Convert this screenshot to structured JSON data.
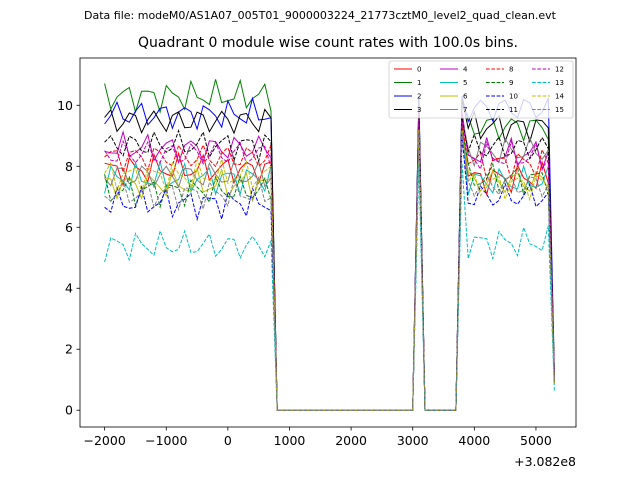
{
  "figure": {
    "suptitle": "Data file: modeM0/AS1A07_005T01_9000003224_21773cztM0_level2_quad_clean.evt",
    "title": "Quadrant 0 module wise count rates with 100.0s bins.",
    "offset_label": "+3.082e8"
  },
  "chart_data": {
    "type": "line",
    "title": "Quadrant 0 module wise count rates with 100.0s bins.",
    "xlabel": "",
    "ylabel": "",
    "x_offset": 308200000,
    "xlim": [
      -2400,
      5650
    ],
    "ylim": [
      -0.55,
      11.55
    ],
    "xticks": [
      -2000,
      -1000,
      0,
      1000,
      2000,
      3000,
      4000,
      5000
    ],
    "xtick_labels": [
      "−2000",
      "−1000",
      "0",
      "1000",
      "2000",
      "3000",
      "4000",
      "5000"
    ],
    "yticks": [
      0,
      2,
      4,
      6,
      8,
      10
    ],
    "ytick_labels": [
      "0",
      "2",
      "4",
      "6",
      "8",
      "10"
    ],
    "grid": false,
    "legend": "upper-right",
    "profile": {
      "x": [
        -2000,
        -1900,
        -1800,
        -1700,
        -1600,
        -1500,
        -1400,
        -1300,
        -1200,
        -1100,
        -1000,
        -900,
        -800,
        -700,
        -600,
        -500,
        -400,
        -300,
        -200,
        -100,
        0,
        100,
        200,
        300,
        400,
        500,
        600,
        700,
        800,
        900,
        1000,
        1100,
        1200,
        1300,
        1400,
        1500,
        1600,
        1700,
        1800,
        1900,
        2000,
        2100,
        2200,
        2300,
        2400,
        2500,
        2600,
        2700,
        2800,
        2900,
        3000,
        3100,
        3200,
        3300,
        3400,
        3500,
        3600,
        3700,
        3800,
        3900,
        4000,
        4100,
        4200,
        4300,
        4400,
        4500,
        4600,
        4700,
        4800,
        4900,
        5000,
        5100,
        5200,
        5300
      ],
      "active": [
        1,
        1,
        1,
        1,
        1,
        1,
        1,
        1,
        1,
        1,
        1,
        1,
        1,
        1,
        1,
        1,
        1,
        1,
        1,
        1,
        1,
        1,
        1,
        1,
        1,
        1,
        1,
        1,
        0,
        0,
        0,
        0,
        0,
        0,
        0,
        0,
        0,
        0,
        0,
        0,
        0,
        0,
        0,
        0,
        0,
        0,
        0,
        0,
        0,
        0,
        0,
        1,
        0,
        0,
        0,
        0,
        0,
        0,
        1,
        1,
        1,
        1,
        1,
        1,
        1,
        1,
        1,
        1,
        1,
        1,
        1,
        1,
        1,
        0.12
      ]
    },
    "series": [
      {
        "name": "0",
        "color": "#ff0000",
        "dash": false,
        "level_a": 7.9,
        "level_b": 7.6,
        "peak": 9.5
      },
      {
        "name": "1",
        "color": "#008000",
        "dash": false,
        "level_a": 10.3,
        "level_b": 9.3,
        "peak": 10.0
      },
      {
        "name": "2",
        "color": "#0000ff",
        "dash": false,
        "level_a": 9.7,
        "level_b": 9.9,
        "peak": 10.3
      },
      {
        "name": "3",
        "color": "#000000",
        "dash": false,
        "level_a": 9.5,
        "level_b": 9.3,
        "peak": 10.2
      },
      {
        "name": "4",
        "color": "#bf00bf",
        "dash": false,
        "level_a": 8.6,
        "level_b": 8.4,
        "peak": 9.8
      },
      {
        "name": "5",
        "color": "#00bfbf",
        "dash": false,
        "level_a": 7.6,
        "level_b": 7.5,
        "peak": 9.4
      },
      {
        "name": "6",
        "color": "#bfbf00",
        "dash": false,
        "level_a": 7.4,
        "level_b": 7.5,
        "peak": 9.3
      },
      {
        "name": "7",
        "color": "#808080",
        "dash": false,
        "level_a": 7.7,
        "level_b": 8.5,
        "peak": 9.6
      },
      {
        "name": "8",
        "color": "#ff0000",
        "dash": true,
        "level_a": 8.3,
        "level_b": 8.1,
        "peak": 9.4
      },
      {
        "name": "9",
        "color": "#008000",
        "dash": true,
        "level_a": 7.2,
        "level_b": 7.6,
        "peak": 9.2
      },
      {
        "name": "10",
        "color": "#0000ff",
        "dash": true,
        "level_a": 6.8,
        "level_b": 7.0,
        "peak": 9.0
      },
      {
        "name": "11",
        "color": "#000000",
        "dash": true,
        "level_a": 8.7,
        "level_b": 8.6,
        "peak": 9.6
      },
      {
        "name": "12",
        "color": "#bf00bf",
        "dash": true,
        "level_a": 8.4,
        "level_b": 8.3,
        "peak": 9.5
      },
      {
        "name": "13",
        "color": "#00bfbf",
        "dash": true,
        "level_a": 5.4,
        "level_b": 5.5,
        "peak": 8.1
      },
      {
        "name": "14",
        "color": "#bfbf00",
        "dash": true,
        "level_a": 7.7,
        "level_b": 7.4,
        "peak": 9.2
      },
      {
        "name": "15",
        "color": "#808080",
        "dash": true,
        "level_a": 7.1,
        "level_b": 7.4,
        "peak": 9.1
      }
    ]
  }
}
